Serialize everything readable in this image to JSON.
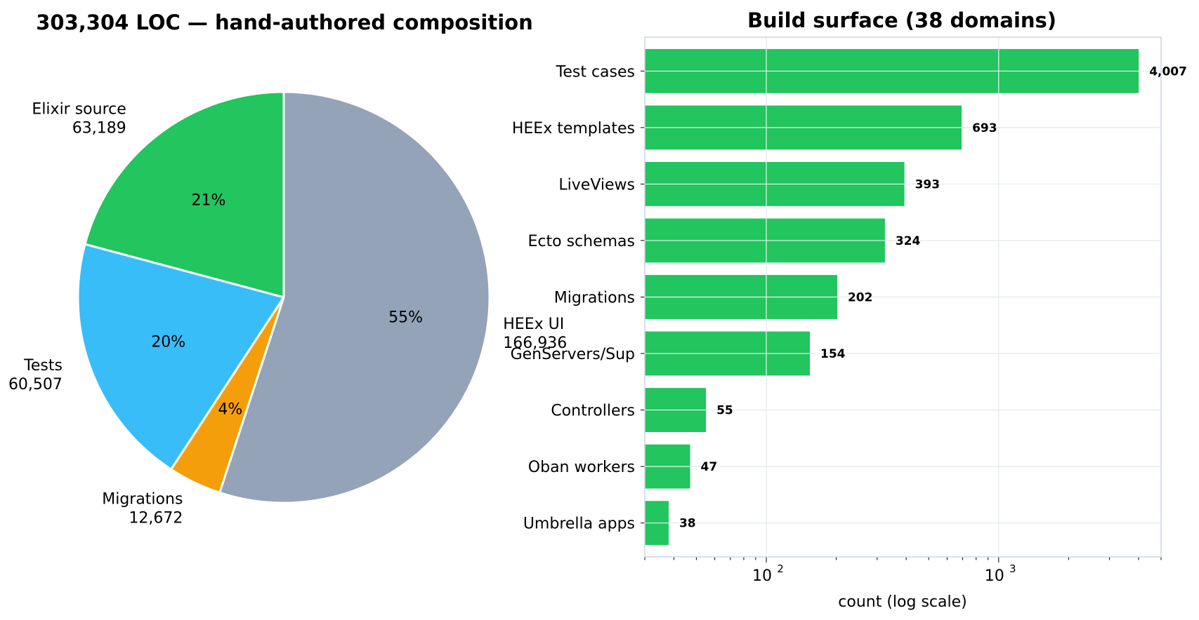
{
  "chart_data": [
    {
      "type": "pie",
      "title": "303,304 LOC — hand-authored composition",
      "slices": [
        {
          "name": "Elixir source",
          "value": 63189,
          "value_label": "63,189",
          "pct_label": "21%",
          "color": "#22c55e"
        },
        {
          "name": "Tests",
          "value": 60507,
          "value_label": "60,507",
          "pct_label": "20%",
          "color": "#38bdf8"
        },
        {
          "name": "Migrations",
          "value": 12672,
          "value_label": "12,672",
          "pct_label": "4%",
          "color": "#f59e0b"
        },
        {
          "name": "HEEx UI",
          "value": 166936,
          "value_label": "166,936",
          "pct_label": "55%",
          "color": "#94a3b8"
        }
      ]
    },
    {
      "type": "bar",
      "orientation": "horizontal",
      "title": "Build surface (38 domains)",
      "xlabel": "count (log scale)",
      "xscale": "log",
      "xlim": [
        30,
        5000
      ],
      "xticks": [
        {
          "value": 100,
          "base": "10",
          "exp": "2"
        },
        {
          "value": 1000,
          "base": "10",
          "exp": "3"
        }
      ],
      "grid": true,
      "bar_color": "#22c55e",
      "categories": [
        "Test cases",
        "HEEx templates",
        "LiveViews",
        "Ecto schemas",
        "Migrations",
        "GenServers/Sup",
        "Controllers",
        "Oban workers",
        "Umbrella apps"
      ],
      "values": [
        4007,
        693,
        393,
        324,
        202,
        154,
        55,
        47,
        38
      ],
      "value_labels": [
        "4,007",
        "693",
        "393",
        "324",
        "202",
        "154",
        "55",
        "47",
        "38"
      ]
    }
  ]
}
